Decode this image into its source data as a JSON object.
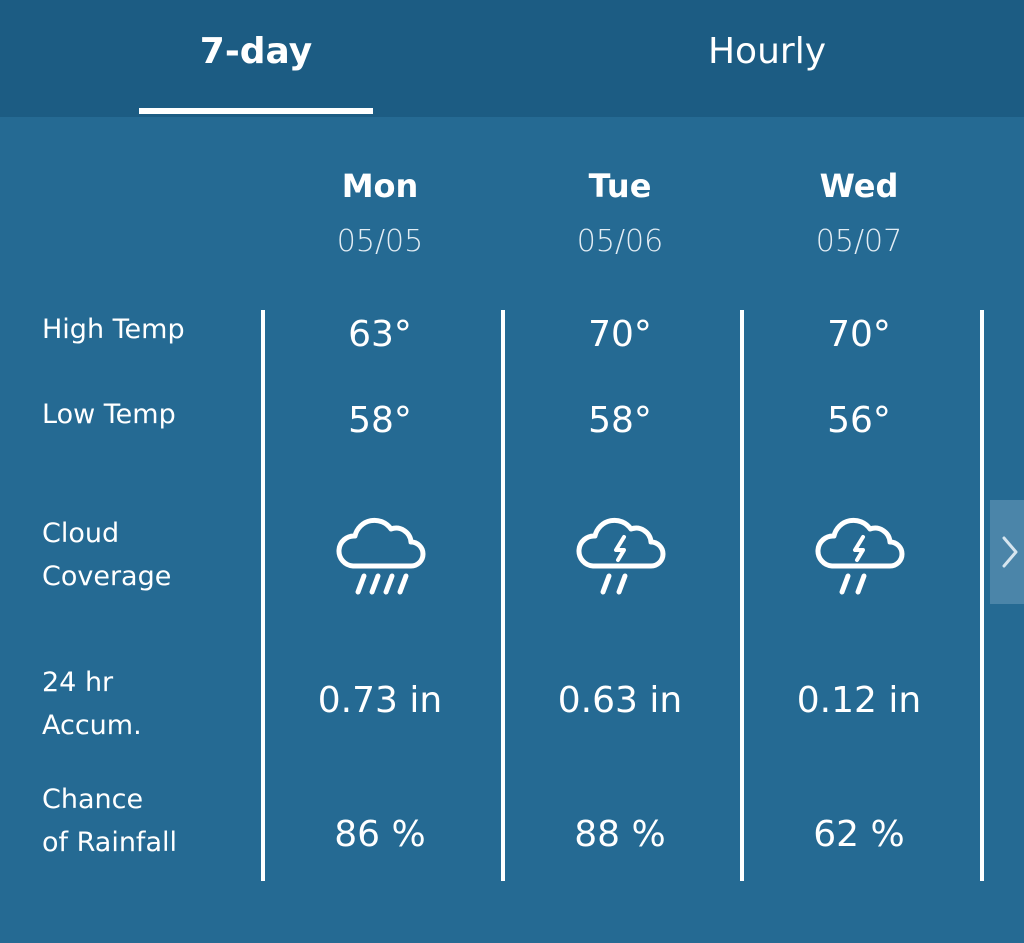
{
  "tabs": [
    {
      "label": "7-day",
      "active": true
    },
    {
      "label": "Hourly",
      "active": false
    }
  ],
  "row_labels": {
    "high_temp": "High Temp",
    "low_temp": "Low Temp",
    "cloud_line1": "Cloud",
    "cloud_line2": "Coverage",
    "accum_line1": "24 hr",
    "accum_line2": "Accum.",
    "chance_line1": "Chance",
    "chance_line2": "of Rainfall"
  },
  "days": [
    {
      "name": "Mon",
      "date": "05/05",
      "high": "63°",
      "low": "58°",
      "cloud_icon": "rain-cloud-icon",
      "accum": "0.73 in",
      "chance": "86 %"
    },
    {
      "name": "Tue",
      "date": "05/06",
      "high": "70°",
      "low": "58°",
      "cloud_icon": "thunderstorm-cloud-icon",
      "accum": "0.63 in",
      "chance": "88 %"
    },
    {
      "name": "Wed",
      "date": "05/07",
      "high": "70°",
      "low": "56°",
      "cloud_icon": "thunderstorm-cloud-icon",
      "accum": "0.12 in",
      "chance": "62 %"
    }
  ],
  "colors": {
    "background": "#256a93",
    "tabbar": "#1c5c83",
    "text": "#ffffff"
  }
}
